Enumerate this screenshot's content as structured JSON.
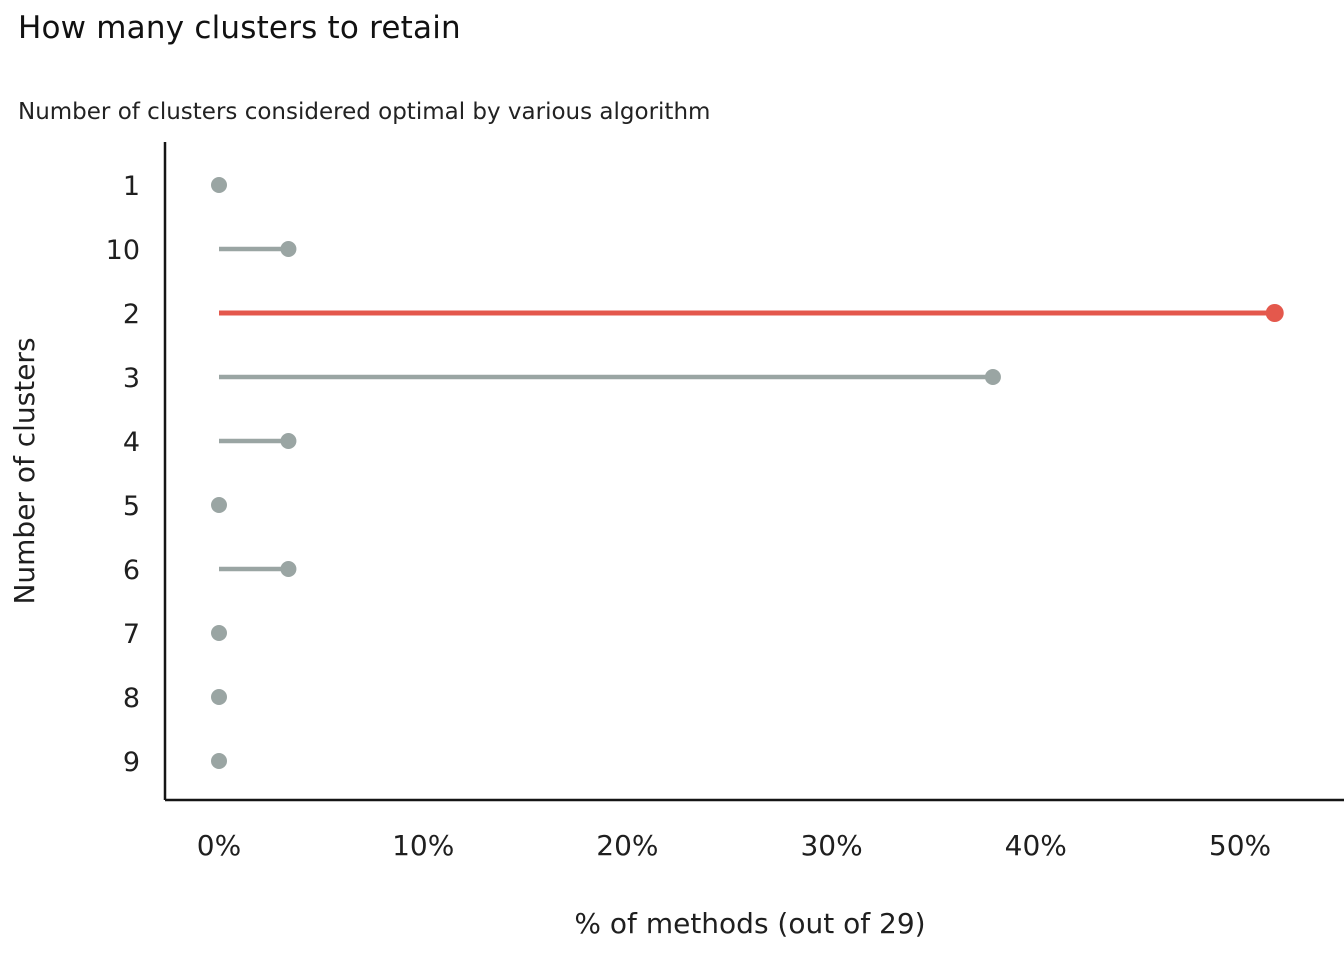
{
  "title": "How many clusters to retain",
  "subtitle": "Number of clusters considered optimal by various algorithm",
  "chart_data": {
    "type": "bar",
    "subtype": "lollipop",
    "orientation": "horizontal",
    "title": "How many clusters to retain",
    "subtitle": "Number of clusters considered optimal by various algorithm",
    "categories": [
      "1",
      "10",
      "2",
      "3",
      "4",
      "5",
      "6",
      "7",
      "8",
      "9"
    ],
    "values": [
      0,
      3.4,
      51.7,
      37.9,
      3.4,
      0,
      3.4,
      0,
      0,
      0
    ],
    "values_unit": "%",
    "methods_total": 29,
    "highlight_category": "2",
    "highlight_color": "#E4584C",
    "default_color": "#9AA5A3",
    "xlabel": "% of methods (out of 29)",
    "ylabel": "Number of clusters",
    "x_ticks": [
      "0%",
      "10%",
      "20%",
      "30%",
      "40%",
      "50%"
    ],
    "x_tick_values": [
      0,
      10,
      20,
      30,
      40,
      50
    ],
    "xlim": [
      0,
      55
    ],
    "grid": "off",
    "legend": "none"
  }
}
